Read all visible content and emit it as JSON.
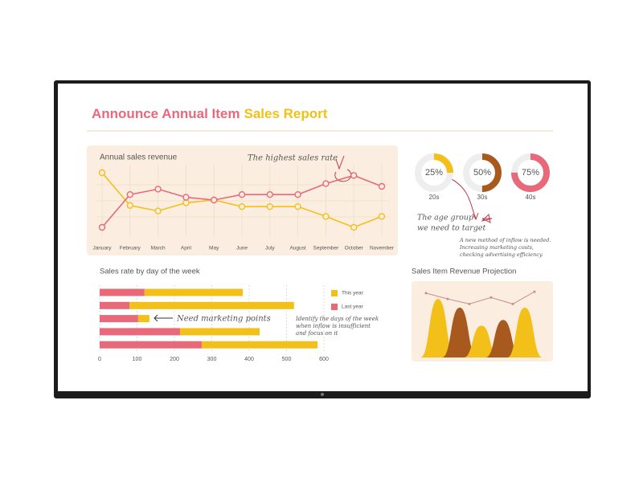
{
  "title": [
    "Announce Annual Item",
    "Sales Report"
  ],
  "chart_data": [
    {
      "type": "line",
      "title": "Annual sales revenue",
      "categories": [
        "January",
        "February",
        "March",
        "April",
        "May",
        "June",
        "July",
        "August",
        "September",
        "October",
        "November"
      ],
      "ylim": [
        0,
        100
      ],
      "series": [
        {
          "color": "#f2c018",
          "values": [
            100,
            40,
            30,
            45,
            50,
            38,
            38,
            38,
            20,
            0,
            20
          ]
        },
        {
          "color": "#e8697a",
          "values": [
            0,
            60,
            70,
            55,
            50,
            60,
            60,
            60,
            80,
            95,
            75
          ]
        }
      ],
      "annotations": [
        "The highest sales rate"
      ]
    },
    {
      "type": "donut",
      "categories": [
        "20s",
        "30s",
        "40s"
      ],
      "values": [
        25,
        50,
        75
      ],
      "value_labels": [
        "25%",
        "50%",
        "75%"
      ],
      "colors": [
        "#f2c018",
        "#a85a1e",
        "#e8697a"
      ],
      "annotations": [
        [
          "The age group",
          "we need to target"
        ],
        [
          "A new method of inflow is needed.",
          "Increasing marketing costs,",
          "checking advertising efficiency."
        ]
      ]
    },
    {
      "type": "hbar",
      "title": "Sales rate by day of the week",
      "categories": [
        null,
        null,
        null,
        null,
        null
      ],
      "xlim": [
        0,
        600
      ],
      "xticks": [
        0,
        100,
        200,
        300,
        400,
        500,
        600
      ],
      "series": [
        {
          "name": "Last year",
          "color": "#e8697a",
          "values": [
            120,
            80,
            103,
            215,
            273
          ]
        },
        {
          "name": "This year",
          "color": "#f2c018",
          "values": [
            263,
            440,
            30,
            213,
            310
          ]
        }
      ],
      "legend_order": [
        1,
        0
      ],
      "annotations": [
        "Need marketing points",
        [
          "Identify the days of the week",
          "when inflow is insufficient",
          "and focus on it"
        ]
      ]
    },
    {
      "type": "mountain",
      "title": "Sales Item Revenue Projection",
      "ylim": [
        0,
        100
      ],
      "values": [
        81,
        69,
        44,
        52,
        69
      ],
      "colors": [
        "#f2c018",
        "#a85a1e",
        "#f2c018",
        "#a85a1e",
        "#f2c018"
      ],
      "line": [
        89,
        81,
        74,
        83,
        74,
        91
      ],
      "line_color": "#c98d8d"
    }
  ]
}
